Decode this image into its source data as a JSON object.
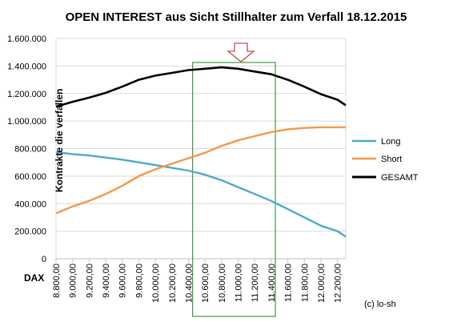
{
  "chart_data": {
    "type": "line",
    "title": "OPEN INTEREST aus Sicht Stillhalter zum Verfall 18.12.2015",
    "xlabel": "DAX",
    "ylabel": "Kontrakte die verfallen",
    "credit": "(c) lo-sh",
    "ylim": [
      0,
      1600000
    ],
    "xlim": [
      8800,
      12300
    ],
    "y_ticks": [
      "0",
      "200.000",
      "400.000",
      "600.000",
      "800.000",
      "1.000.000",
      "1.200.000",
      "1.400.000",
      "1.600.000"
    ],
    "x_ticks": [
      "8.800,00",
      "9.000,00",
      "9.200,00",
      "9.400,00",
      "9.600,00",
      "9.800,00",
      "10.000,00",
      "10.200,00",
      "10.400,00",
      "10.600,00",
      "10.800,00",
      "11.000,00",
      "11.200,00",
      "11.400,00",
      "11.600,00",
      "11.800,00",
      "12.000,00",
      "12.200,00"
    ],
    "grid": true,
    "legend_position": "right",
    "highlight_range": [
      10450,
      11450
    ],
    "highlight_marker": "down-arrow",
    "x": [
      8800,
      9000,
      9200,
      9400,
      9600,
      9800,
      10000,
      10200,
      10400,
      10600,
      10800,
      11000,
      11200,
      11400,
      11600,
      11800,
      12000,
      12200,
      12300
    ],
    "series": [
      {
        "name": "Long",
        "color": "#4BACC6",
        "values": [
          775000,
          760000,
          750000,
          735000,
          720000,
          700000,
          680000,
          660000,
          640000,
          610000,
          570000,
          520000,
          470000,
          420000,
          360000,
          300000,
          240000,
          200000,
          160000
        ]
      },
      {
        "name": "Short",
        "color": "#F79646",
        "values": [
          330000,
          380000,
          420000,
          470000,
          530000,
          600000,
          650000,
          690000,
          730000,
          770000,
          820000,
          860000,
          890000,
          920000,
          940000,
          950000,
          955000,
          955000,
          955000
        ]
      },
      {
        "name": "GESAMT",
        "color": "#000000",
        "values": [
          1105000,
          1140000,
          1170000,
          1205000,
          1250000,
          1300000,
          1330000,
          1350000,
          1370000,
          1380000,
          1390000,
          1380000,
          1360000,
          1340000,
          1300000,
          1250000,
          1195000,
          1155000,
          1115000
        ]
      }
    ]
  }
}
